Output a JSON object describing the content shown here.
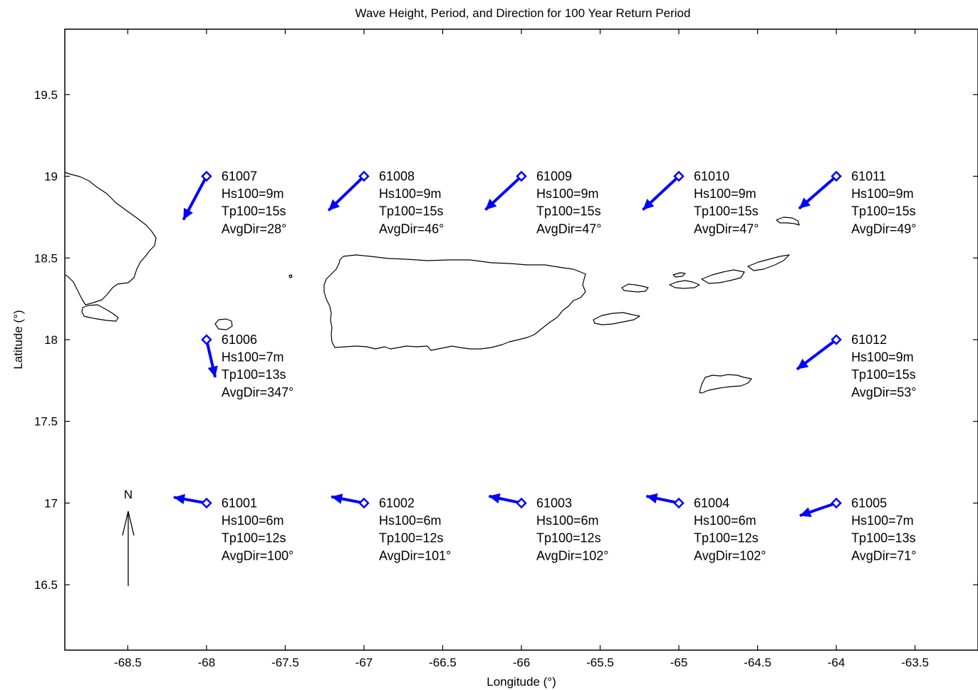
{
  "chart_data": {
    "type": "map",
    "title": "Wave Height, Period, and Direction for 100 Year Return Period",
    "xlabel": "Longitude (°)",
    "ylabel": "Latitude (°)",
    "xlim": [
      -68.9,
      -63.1
    ],
    "ylim": [
      16.1,
      19.9
    ],
    "xticks": [
      -68.5,
      -68,
      -67.5,
      -67,
      -66.5,
      -66,
      -65.5,
      -65,
      -64.5,
      -64,
      -63.5
    ],
    "yticks": [
      16.5,
      17,
      17.5,
      18,
      18.5,
      19,
      19.5
    ],
    "arrow_color": "#0000ff",
    "north_arrow_label": "N",
    "stations": [
      {
        "id": "61007",
        "lon": -68,
        "lat": 19,
        "hs": "Hs100=9m",
        "tp": "Tp100=15s",
        "dir": "AvgDir=28°",
        "avg_dir_deg": 28,
        "hs_m": 9
      },
      {
        "id": "61008",
        "lon": -67,
        "lat": 19,
        "hs": "Hs100=9m",
        "tp": "Tp100=15s",
        "dir": "AvgDir=46°",
        "avg_dir_deg": 46,
        "hs_m": 9
      },
      {
        "id": "61009",
        "lon": -66,
        "lat": 19,
        "hs": "Hs100=9m",
        "tp": "Tp100=15s",
        "dir": "AvgDir=47°",
        "avg_dir_deg": 47,
        "hs_m": 9
      },
      {
        "id": "61010",
        "lon": -65,
        "lat": 19,
        "hs": "Hs100=9m",
        "tp": "Tp100=15s",
        "dir": "AvgDir=47°",
        "avg_dir_deg": 47,
        "hs_m": 9
      },
      {
        "id": "61011",
        "lon": -64,
        "lat": 19,
        "hs": "Hs100=9m",
        "tp": "Tp100=15s",
        "dir": "AvgDir=49°",
        "avg_dir_deg": 49,
        "hs_m": 9
      },
      {
        "id": "61006",
        "lon": -68,
        "lat": 18,
        "hs": "Hs100=7m",
        "tp": "Tp100=13s",
        "dir": "AvgDir=347°",
        "avg_dir_deg": 347,
        "hs_m": 7
      },
      {
        "id": "61012",
        "lon": -64,
        "lat": 18,
        "hs": "Hs100=9m",
        "tp": "Tp100=15s",
        "dir": "AvgDir=53°",
        "avg_dir_deg": 53,
        "hs_m": 9
      },
      {
        "id": "61001",
        "lon": -68,
        "lat": 17,
        "hs": "Hs100=6m",
        "tp": "Tp100=12s",
        "dir": "AvgDir=100°",
        "avg_dir_deg": 100,
        "hs_m": 6
      },
      {
        "id": "61002",
        "lon": -67,
        "lat": 17,
        "hs": "Hs100=6m",
        "tp": "Tp100=12s",
        "dir": "AvgDir=101°",
        "avg_dir_deg": 101,
        "hs_m": 6
      },
      {
        "id": "61003",
        "lon": -66,
        "lat": 17,
        "hs": "Hs100=6m",
        "tp": "Tp100=12s",
        "dir": "AvgDir=102°",
        "avg_dir_deg": 102,
        "hs_m": 6
      },
      {
        "id": "61004",
        "lon": -65,
        "lat": 17,
        "hs": "Hs100=6m",
        "tp": "Tp100=12s",
        "dir": "AvgDir=102°",
        "avg_dir_deg": 102,
        "hs_m": 6
      },
      {
        "id": "61005",
        "lon": -64,
        "lat": 17,
        "hs": "Hs100=7m",
        "tp": "Tp100=13s",
        "dir": "AvgDir=71°",
        "avg_dir_deg": 71,
        "hs_m": 7
      }
    ]
  }
}
